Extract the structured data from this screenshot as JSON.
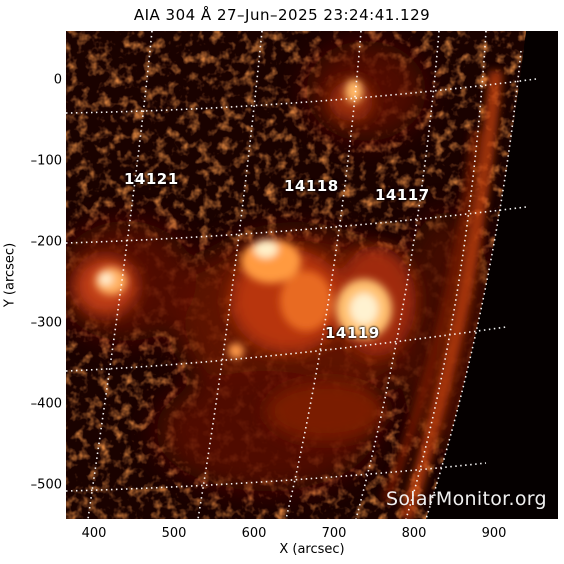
{
  "title": "AIA 304 Å 27–Jun–2025 23:24:41.129",
  "credit": "SolarMonitor.org",
  "x_axis": {
    "label": "X (arcsec)",
    "ticks": [
      "400",
      "500",
      "600",
      "700",
      "800",
      "900"
    ]
  },
  "y_axis": {
    "label": "Y (arcsec)",
    "ticks": [
      "0",
      "–100",
      "–200",
      "–300",
      "–400",
      "–500"
    ]
  },
  "regions": [
    {
      "id": "ar-14121",
      "label": "14121"
    },
    {
      "id": "ar-14118",
      "label": "14118"
    },
    {
      "id": "ar-14117",
      "label": "14117"
    },
    {
      "id": "ar-14119",
      "label": "14119"
    }
  ],
  "colors": {
    "background": "#050000",
    "bright": "#fff2d0",
    "mid": "#c83a10",
    "dark": "#3a0800",
    "grid": "#ffffff"
  }
}
